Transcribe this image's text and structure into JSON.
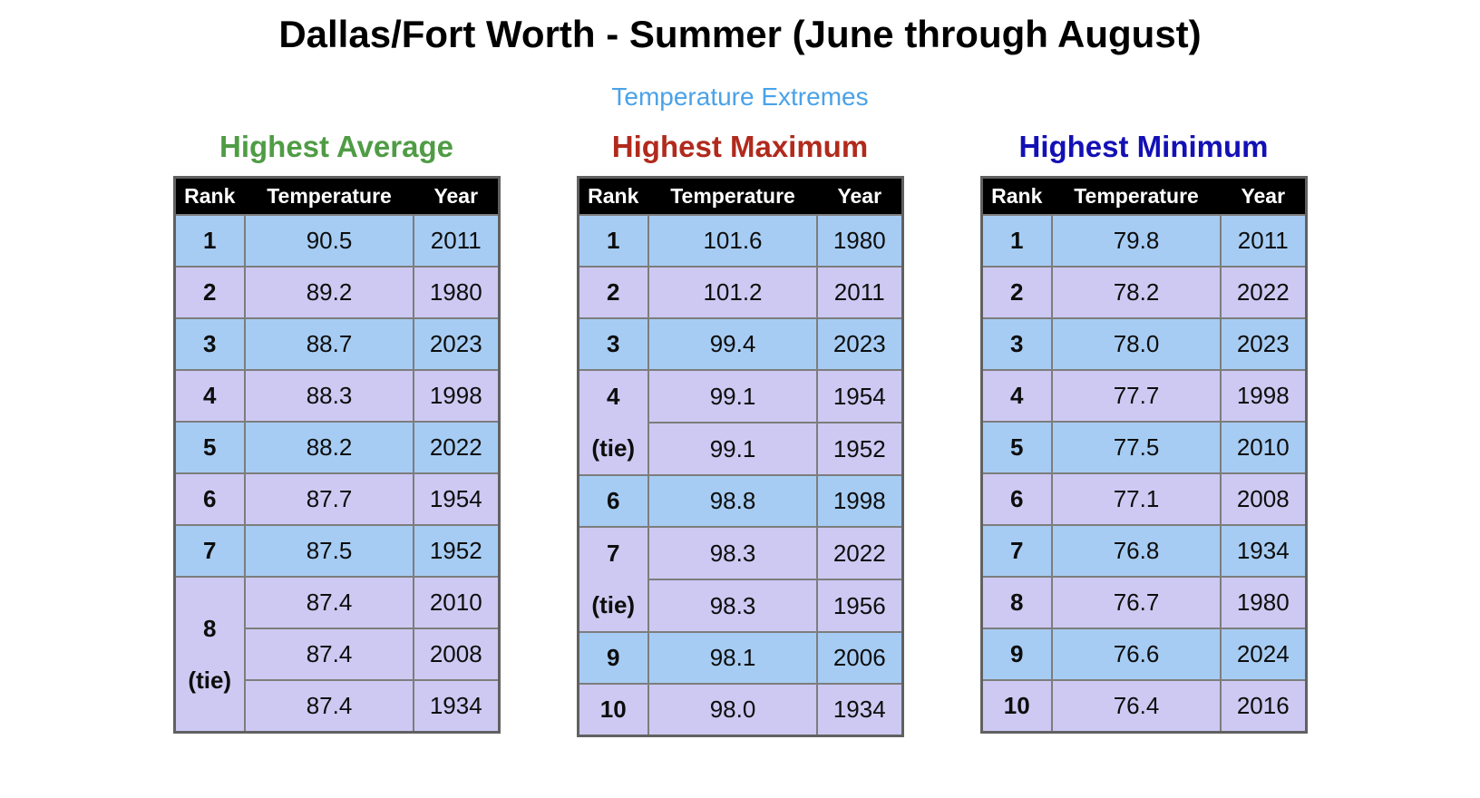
{
  "page": {
    "title": "Dallas/Fort Worth - Summer (June through August)",
    "subtitle": "Temperature Extremes",
    "subtitle_color": "#4aa2e8",
    "background": "#ffffff"
  },
  "colors": {
    "row_blue": "#a6ccf3",
    "row_lavender": "#cdc9f2",
    "header_background": "#000000",
    "header_text": "#ffffff",
    "grid_border": "#7d7d7d",
    "title_green": "#4f9c45",
    "title_red": "#b12a1d",
    "title_blue": "#1310b5"
  },
  "chart_data": [
    {
      "type": "table",
      "title": "Highest Average",
      "title_color": "#4f9c45",
      "columns": [
        "Rank",
        "Temperature",
        "Year"
      ],
      "rows": [
        {
          "rank": "1",
          "temp": "90.5",
          "year": "2011"
        },
        {
          "rank": "2",
          "temp": "89.2",
          "year": "1980"
        },
        {
          "rank": "3",
          "temp": "88.7",
          "year": "2023"
        },
        {
          "rank": "4",
          "temp": "88.3",
          "year": "1998"
        },
        {
          "rank": "5",
          "temp": "88.2",
          "year": "2022"
        },
        {
          "rank": "6",
          "temp": "87.7",
          "year": "1954"
        },
        {
          "rank": "7",
          "temp": "87.5",
          "year": "1952"
        },
        {
          "rank": "8",
          "tie": "(tie)",
          "temp": "87.4",
          "year": "2010"
        },
        {
          "temp": "87.4",
          "year": "2008"
        },
        {
          "temp": "87.4",
          "year": "1934"
        }
      ]
    },
    {
      "type": "table",
      "title": "Highest Maximum",
      "title_color": "#b12a1d",
      "columns": [
        "Rank",
        "Temperature",
        "Year"
      ],
      "rows": [
        {
          "rank": "1",
          "temp": "101.6",
          "year": "1980"
        },
        {
          "rank": "2",
          "temp": "101.2",
          "year": "2011"
        },
        {
          "rank": "3",
          "temp": "99.4",
          "year": "2023"
        },
        {
          "rank": "4",
          "tie": "(tie)",
          "temp": "99.1",
          "year": "1954"
        },
        {
          "temp": "99.1",
          "year": "1952"
        },
        {
          "rank": "6",
          "temp": "98.8",
          "year": "1998"
        },
        {
          "rank": "7",
          "tie": "(tie)",
          "temp": "98.3",
          "year": "2022"
        },
        {
          "temp": "98.3",
          "year": "1956"
        },
        {
          "rank": "9",
          "temp": "98.1",
          "year": "2006"
        },
        {
          "rank": "10",
          "temp": "98.0",
          "year": "1934"
        }
      ]
    },
    {
      "type": "table",
      "title": "Highest Minimum",
      "title_color": "#1310b5",
      "columns": [
        "Rank",
        "Temperature",
        "Year"
      ],
      "rows": [
        {
          "rank": "1",
          "temp": "79.8",
          "year": "2011"
        },
        {
          "rank": "2",
          "temp": "78.2",
          "year": "2022"
        },
        {
          "rank": "3",
          "temp": "78.0",
          "year": "2023"
        },
        {
          "rank": "4",
          "temp": "77.7",
          "year": "1998"
        },
        {
          "rank": "5",
          "temp": "77.5",
          "year": "2010"
        },
        {
          "rank": "6",
          "temp": "77.1",
          "year": "2008"
        },
        {
          "rank": "7",
          "temp": "76.8",
          "year": "1934"
        },
        {
          "rank": "8",
          "temp": "76.7",
          "year": "1980"
        },
        {
          "rank": "9",
          "temp": "76.6",
          "year": "2024"
        },
        {
          "rank": "10",
          "temp": "76.4",
          "year": "2016"
        }
      ]
    }
  ]
}
